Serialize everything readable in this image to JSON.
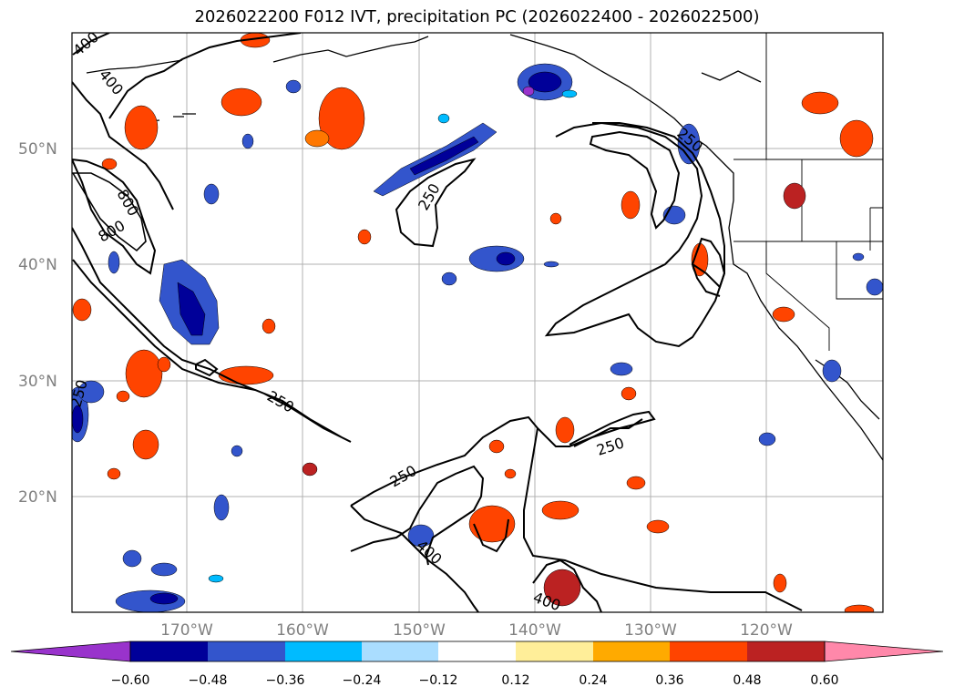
{
  "title": "2026022200 F012 IVT, precipitation PC (2026022400 - 2026022500)",
  "map": {
    "lat_labels": [
      "50°N",
      "40°N",
      "30°N",
      "20°N"
    ],
    "lon_labels": [
      "170°W",
      "160°W",
      "150°W",
      "140°W",
      "130°W",
      "120°W"
    ],
    "contour_labels": [
      "400",
      "400",
      "800",
      "800",
      "250",
      "250",
      "250",
      "250",
      "250",
      "400",
      "400",
      "250"
    ]
  },
  "colorbar": {
    "colors": [
      "#9933cc",
      "#000099",
      "#3355cc",
      "#00bbff",
      "#aaddff",
      "#ffffff",
      "#ffee99",
      "#ffaa00",
      "#ff4400",
      "#bb2222",
      "#ff88aa"
    ],
    "ticks": [
      "−0.60",
      "−0.48",
      "−0.36",
      "−0.24",
      "−0.12",
      "0.12",
      "0.24",
      "0.36",
      "0.48",
      "0.60"
    ]
  }
}
